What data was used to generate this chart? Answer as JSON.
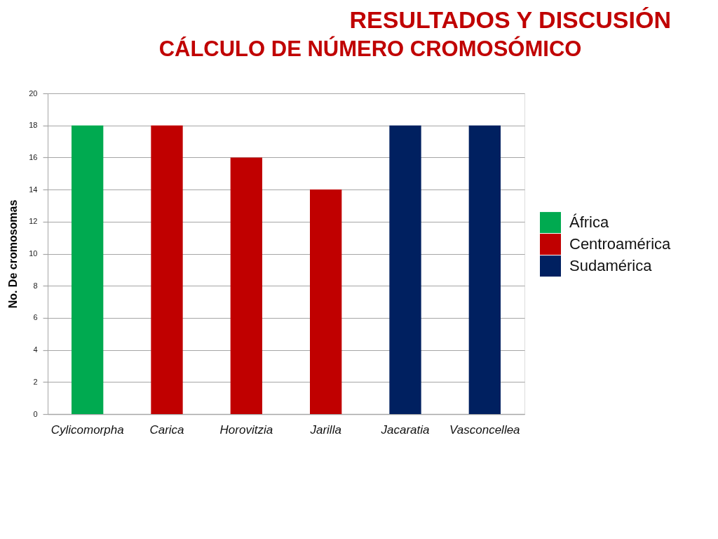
{
  "chart_data": {
    "type": "bar",
    "title": "RESULTADOS Y DISCUSIÓN",
    "subtitle": "CÁLCULO DE NÚMERO CROMOSÓMICO",
    "ylabel": "No. De cromosomas",
    "categories": [
      "Cylicomorpha",
      "Carica",
      "Horovitzia",
      "Jarilla",
      "Jacaratia",
      "Vasconcellea"
    ],
    "series": [
      {
        "name": "África",
        "color": "#00aa50",
        "values": [
          18,
          null,
          null,
          null,
          null,
          null
        ]
      },
      {
        "name": "Centroamérica",
        "color": "#c00000",
        "values": [
          null,
          18,
          16,
          14,
          null,
          null
        ]
      },
      {
        "name": "Sudamérica",
        "color": "#002060",
        "values": [
          null,
          null,
          null,
          null,
          18,
          18
        ]
      }
    ],
    "ylim": [
      0,
      20
    ],
    "yticks": [
      0,
      2,
      4,
      6,
      8,
      10,
      12,
      14,
      16,
      18,
      20
    ],
    "grid": "y",
    "legend": "right"
  }
}
